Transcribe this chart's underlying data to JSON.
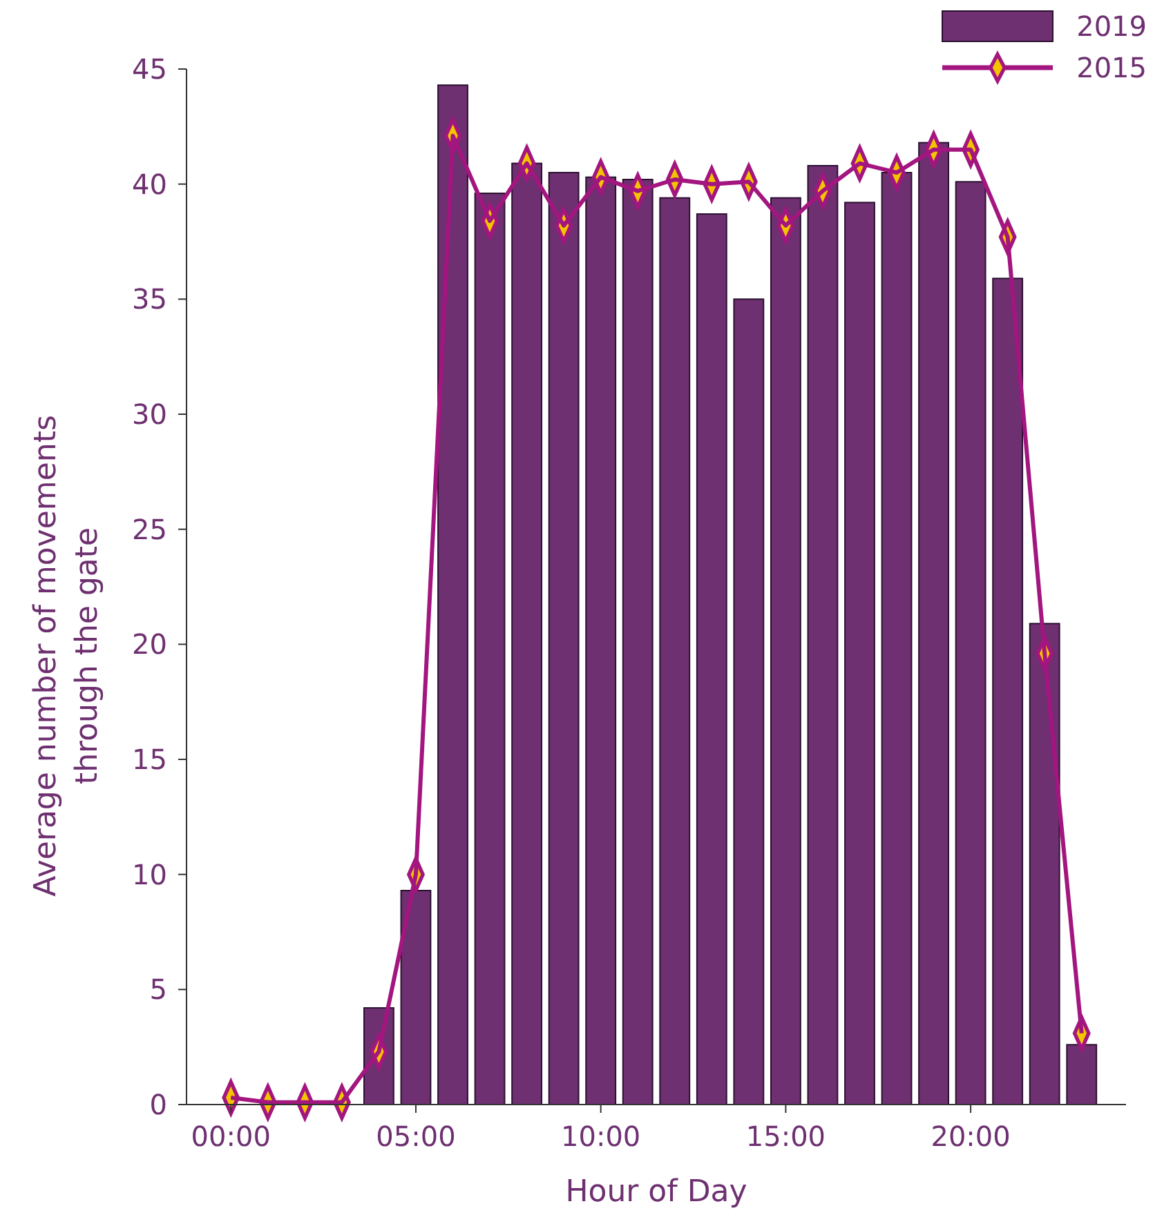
{
  "chart_data": {
    "type": "bar",
    "xlabel": "Hour of Day",
    "ylabel": "Average number of movements through the gate",
    "x": [
      0,
      1,
      2,
      3,
      4,
      5,
      6,
      7,
      8,
      9,
      10,
      11,
      12,
      13,
      14,
      15,
      16,
      17,
      18,
      19,
      20,
      21,
      22,
      23
    ],
    "series": [
      {
        "name": "2019",
        "color": "#6e3070",
        "values": [
          0,
          0,
          0,
          0,
          4.2,
          9.3,
          44.3,
          39.6,
          40.9,
          40.5,
          40.3,
          40.2,
          39.4,
          38.7,
          35.0,
          39.4,
          40.8,
          39.2,
          40.5,
          41.8,
          40.1,
          35.9,
          20.9,
          2.6
        ]
      },
      {
        "name": "2015",
        "type": "line",
        "color": "#a3157f",
        "marker": "diamond",
        "values": [
          0.3,
          0.1,
          0.1,
          0.1,
          2.3,
          10.0,
          42.1,
          38.4,
          40.9,
          38.2,
          40.3,
          39.7,
          40.2,
          40.0,
          40.1,
          38.2,
          39.7,
          40.9,
          40.5,
          41.5,
          41.5,
          37.7,
          19.6,
          3.1
        ]
      }
    ],
    "xlim": [
      -1.2,
      24.2
    ],
    "xticks": [
      {
        "value": 0,
        "label": "00:00"
      },
      {
        "value": 5,
        "label": "05:00"
      },
      {
        "value": 10,
        "label": "10:00"
      },
      {
        "value": 15,
        "label": "15:00"
      },
      {
        "value": 20,
        "label": "20:00"
      }
    ],
    "ylim": [
      0,
      45
    ],
    "yticks": [
      0,
      5,
      10,
      15,
      20,
      25,
      30,
      35,
      40,
      45
    ],
    "grid": false,
    "legend": "top right"
  }
}
